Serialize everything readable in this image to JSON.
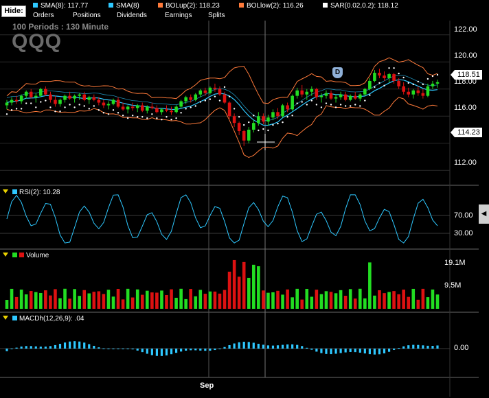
{
  "toolbar": {
    "hide_label": "Hide:",
    "indicators": [
      {
        "label": "SMA(8): 117.77",
        "color": "#2ec8ff"
      },
      {
        "label": "SMA(8)",
        "color": "#2ec8ff"
      },
      {
        "label": "BOLup(2): 118.23",
        "color": "#ff7a3a"
      },
      {
        "label": "BOLlow(2): 116.26",
        "color": "#ff7a3a"
      },
      {
        "label": "SAR(0.02,0.2): 118.12",
        "color": "#ffffff"
      }
    ],
    "options": [
      "Orders",
      "Positions",
      "Dividends",
      "Earnings",
      "Splits"
    ]
  },
  "price_panel": {
    "periods": "100  Periods : 130 Minute",
    "symbol": "QQQ",
    "axis_labels": [
      "122.00",
      "120.00",
      "118.00",
      "116.00",
      "114.00",
      "112.00"
    ],
    "last_price_tag": "118.51",
    "cursor_price_tag": "114.23",
    "event_marker": "D"
  },
  "rsi_panel": {
    "label": "RSI(2): 10.28",
    "color": "#2ec8ff",
    "axis_labels": [
      "70.00",
      "30.00"
    ]
  },
  "volume_panel": {
    "label": "Volume",
    "up_color": "#22dd22",
    "down_color": "#dd1111",
    "axis_labels": [
      "19.1M",
      "9.5M"
    ]
  },
  "macd_panel": {
    "label": "MACDh(12,26,9): .04",
    "color": "#2ec8ff",
    "axis_labels": [
      "0.00"
    ]
  },
  "x_axis": {
    "labels": [
      "Sep"
    ]
  },
  "chart_data": {
    "type": "candlestick",
    "symbol": "QQQ",
    "interval": "130 Minute",
    "price_ylim": [
      111,
      122.8
    ],
    "ohlc_approx": [
      [
        116.8,
        117.2,
        116.5,
        117.0
      ],
      [
        117.0,
        117.4,
        116.8,
        117.2
      ],
      [
        117.2,
        117.5,
        116.9,
        117.1
      ],
      [
        117.1,
        117.6,
        116.9,
        117.5
      ],
      [
        117.5,
        117.9,
        117.3,
        117.8
      ],
      [
        117.8,
        118.0,
        117.3,
        117.4
      ],
      [
        117.4,
        117.7,
        117.0,
        117.5
      ],
      [
        117.5,
        118.1,
        117.4,
        118.0
      ],
      [
        118.0,
        118.2,
        117.5,
        117.6
      ],
      [
        117.6,
        117.8,
        117.0,
        117.2
      ],
      [
        117.2,
        117.5,
        116.7,
        116.9
      ],
      [
        116.9,
        117.3,
        116.7,
        117.2
      ],
      [
        117.2,
        117.6,
        117.0,
        117.5
      ],
      [
        117.5,
        117.8,
        117.2,
        117.3
      ],
      [
        117.3,
        117.6,
        117.0,
        117.5
      ],
      [
        117.5,
        117.7,
        117.2,
        117.6
      ],
      [
        117.6,
        117.8,
        117.1,
        117.2
      ],
      [
        117.2,
        117.5,
        116.9,
        117.4
      ],
      [
        117.4,
        117.6,
        117.1,
        117.2
      ],
      [
        117.2,
        117.4,
        116.8,
        117.0
      ],
      [
        117.0,
        117.2,
        116.6,
        116.8
      ],
      [
        116.8,
        117.1,
        116.5,
        116.9
      ],
      [
        116.9,
        117.3,
        116.8,
        117.2
      ],
      [
        117.2,
        117.4,
        116.6,
        116.7
      ],
      [
        116.7,
        117.0,
        116.4,
        116.5
      ],
      [
        116.5,
        116.8,
        116.2,
        116.7
      ],
      [
        116.7,
        117.0,
        116.4,
        116.6
      ],
      [
        116.6,
        116.9,
        116.3,
        116.8
      ],
      [
        116.8,
        117.0,
        116.3,
        116.4
      ],
      [
        116.4,
        116.8,
        116.2,
        116.7
      ],
      [
        116.7,
        117.0,
        116.5,
        116.6
      ],
      [
        116.6,
        116.8,
        116.2,
        116.3
      ],
      [
        116.3,
        116.6,
        116.1,
        116.5
      ],
      [
        116.5,
        116.8,
        116.3,
        116.4
      ],
      [
        116.4,
        116.7,
        116.1,
        116.3
      ],
      [
        116.3,
        116.8,
        116.2,
        116.7
      ],
      [
        116.7,
        117.2,
        116.6,
        117.1
      ],
      [
        117.1,
        117.5,
        116.9,
        117.4
      ],
      [
        117.4,
        117.6,
        117.0,
        117.2
      ],
      [
        117.2,
        117.7,
        117.1,
        117.6
      ],
      [
        117.6,
        118.0,
        117.4,
        117.9
      ],
      [
        117.9,
        118.1,
        117.5,
        117.7
      ],
      [
        117.7,
        118.2,
        117.6,
        118.1
      ],
      [
        118.1,
        118.4,
        117.8,
        118.0
      ],
      [
        118.0,
        118.2,
        117.5,
        117.6
      ],
      [
        117.6,
        117.8,
        116.9,
        117.0
      ],
      [
        117.0,
        117.1,
        115.8,
        116.0
      ],
      [
        116.0,
        116.2,
        115.2,
        115.5
      ],
      [
        115.5,
        115.6,
        114.6,
        114.9
      ],
      [
        114.9,
        115.0,
        113.8,
        114.2
      ],
      [
        114.2,
        115.2,
        114.0,
        115.0
      ],
      [
        115.0,
        115.7,
        114.8,
        115.5
      ],
      [
        115.5,
        116.3,
        115.3,
        116.0
      ],
      [
        116.0,
        116.2,
        115.4,
        115.6
      ],
      [
        115.6,
        116.1,
        115.3,
        115.9
      ],
      [
        115.9,
        116.5,
        115.7,
        116.3
      ],
      [
        116.3,
        116.6,
        115.8,
        116.0
      ],
      [
        116.0,
        116.9,
        115.9,
        116.8
      ],
      [
        116.8,
        117.0,
        116.3,
        116.5
      ],
      [
        116.5,
        117.6,
        116.4,
        117.5
      ],
      [
        117.5,
        118.1,
        117.3,
        117.9
      ],
      [
        117.9,
        118.3,
        117.4,
        117.6
      ],
      [
        117.6,
        118.0,
        117.2,
        117.8
      ],
      [
        117.8,
        118.2,
        117.5,
        118.0
      ],
      [
        118.0,
        118.1,
        117.2,
        117.4
      ],
      [
        117.4,
        117.7,
        117.0,
        117.5
      ],
      [
        117.5,
        117.9,
        117.3,
        117.7
      ],
      [
        117.7,
        117.9,
        117.2,
        117.3
      ],
      [
        117.3,
        117.6,
        117.0,
        117.4
      ],
      [
        117.4,
        117.8,
        117.2,
        117.6
      ],
      [
        117.6,
        117.8,
        117.1,
        117.2
      ],
      [
        117.2,
        117.6,
        117.1,
        117.5
      ],
      [
        117.5,
        117.8,
        117.2,
        117.3
      ],
      [
        117.3,
        117.7,
        117.1,
        117.6
      ],
      [
        117.6,
        118.1,
        117.5,
        118.0
      ],
      [
        118.0,
        118.8,
        117.9,
        118.6
      ],
      [
        118.6,
        119.4,
        118.5,
        119.2
      ],
      [
        119.2,
        119.5,
        118.8,
        119.0
      ],
      [
        119.0,
        119.3,
        118.6,
        118.8
      ],
      [
        118.8,
        119.2,
        118.5,
        119.1
      ],
      [
        119.1,
        119.2,
        118.4,
        118.6
      ],
      [
        118.6,
        118.8,
        118.0,
        118.2
      ],
      [
        118.2,
        118.5,
        117.6,
        117.8
      ],
      [
        117.8,
        118.1,
        117.4,
        117.6
      ],
      [
        117.6,
        118.0,
        117.3,
        117.9
      ],
      [
        117.9,
        118.2,
        117.5,
        117.7
      ],
      [
        117.7,
        118.0,
        117.3,
        117.5
      ],
      [
        117.5,
        118.4,
        117.4,
        118.2
      ],
      [
        118.2,
        118.6,
        118.0,
        118.4
      ],
      [
        118.4,
        118.7,
        118.1,
        118.51
      ]
    ]
  }
}
